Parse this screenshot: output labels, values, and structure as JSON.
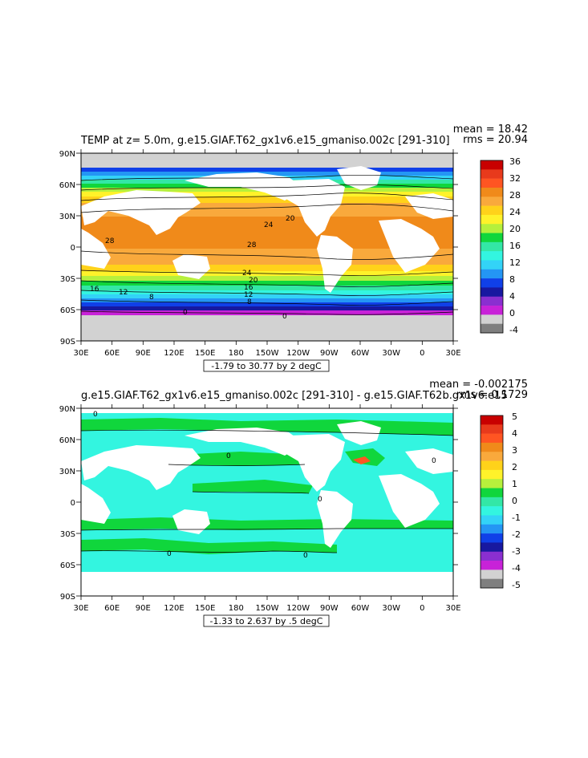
{
  "panels": [
    {
      "id": "top",
      "title": "TEMP at z=    5.0m, g.e15.GIAF.T62_gx1v6.e15_gmaniso.002c [291-310]",
      "mean_label": "mean = 18.42",
      "rms_label": "rms = 20.94",
      "range_label": "-1.79 to 30.77 by 2 degC",
      "colorbar_labels": [
        "36",
        "32",
        "28",
        "24",
        "20",
        "16",
        "12",
        "8",
        "4",
        "0",
        "-4"
      ],
      "colorbar_colors": [
        "#c80000",
        "#e83a1c",
        "#ff5522",
        "#f08a1a",
        "#f9a93c",
        "#ffd21a",
        "#fff22a",
        "#b6f03c",
        "#10d63c",
        "#33e7a6",
        "#33f5e0",
        "#33d3f7",
        "#2496f4",
        "#1040e8",
        "#1818a0",
        "#8a2fd0",
        "#c822d8",
        "#d2d2d2",
        "#7f7f7f"
      ],
      "contour_labels": [
        "28",
        "24",
        "20",
        "28",
        "24",
        "20",
        "16",
        "12",
        "8",
        "16",
        "12",
        "8",
        "0",
        "0"
      ]
    },
    {
      "id": "bottom",
      "title": "g.e15.GIAF.T62_gx1v6.e15_gmaniso.002c [291-310] - g.e15.GIAF.T62b.gx1v6.e15",
      "mean_label": "mean = -0.002175",
      "rms_label": "rms = 0.1729",
      "range_label": "-1.33 to 2.637 by .5 degC",
      "colorbar_labels": [
        "5",
        "4",
        "3",
        "2",
        "1",
        "0",
        "-1",
        "-2",
        "-3",
        "-4",
        "-5"
      ],
      "colorbar_colors": [
        "#c80000",
        "#e83a1c",
        "#ff5522",
        "#f08a1a",
        "#f9a93c",
        "#ffd21a",
        "#fff22a",
        "#b6f03c",
        "#10d63c",
        "#33e7a6",
        "#33f5e0",
        "#33d3f7",
        "#2496f4",
        "#1040e8",
        "#1818a0",
        "#8a2fd0",
        "#c822d8",
        "#d2d2d2",
        "#7f7f7f"
      ],
      "contour_labels": [
        "0",
        "0",
        "0",
        "0",
        "0",
        "0"
      ]
    }
  ],
  "axes": {
    "lat_labels": [
      "90N",
      "60N",
      "30N",
      "0",
      "30S",
      "60S",
      "90S"
    ],
    "lon_labels": [
      "30E",
      "60E",
      "90E",
      "120E",
      "150E",
      "180",
      "150W",
      "120W",
      "90W",
      "60W",
      "30W",
      "0",
      "30E"
    ]
  }
}
